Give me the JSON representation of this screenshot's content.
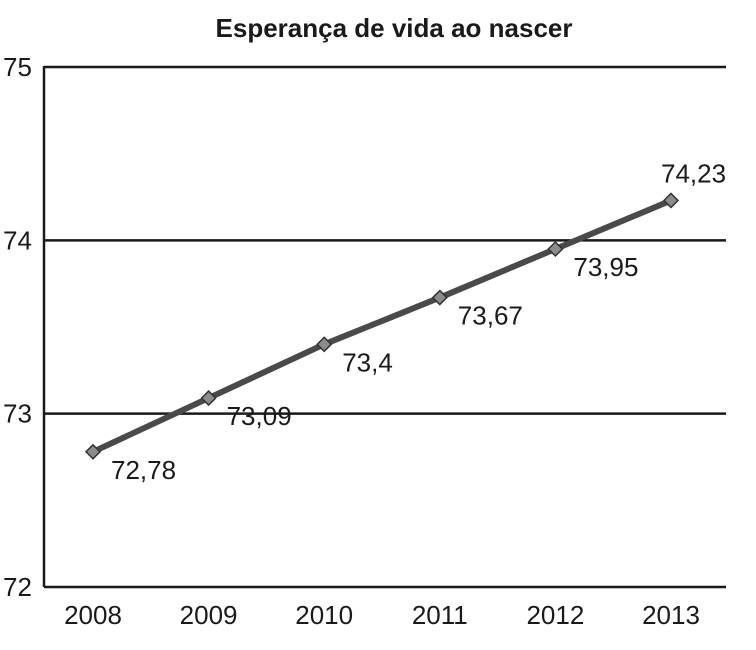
{
  "chart_data": {
    "type": "line",
    "title": "Esperança de vida ao nascer",
    "xlabel": "",
    "ylabel": "",
    "categories": [
      "2008",
      "2009",
      "2010",
      "2011",
      "2012",
      "2013"
    ],
    "series": [
      {
        "values": [
          72.78,
          73.09,
          73.4,
          73.67,
          73.95,
          74.23
        ],
        "labels": [
          "72,78",
          "73,09",
          "73,4",
          "73,67",
          "73,95",
          "74,23"
        ]
      }
    ],
    "ylim": [
      72,
      75
    ],
    "yticks": [
      72,
      73,
      74,
      75
    ],
    "ytick_labels": [
      "72",
      "73",
      "74",
      "75"
    ],
    "grid": "horizontal",
    "legend": "none",
    "colors": {
      "line": "#4a4a4a",
      "marker_fill": "#8c8c8c",
      "marker_stroke": "#333333",
      "grid": "#1a1a1a",
      "text": "#1a1a1a"
    }
  }
}
